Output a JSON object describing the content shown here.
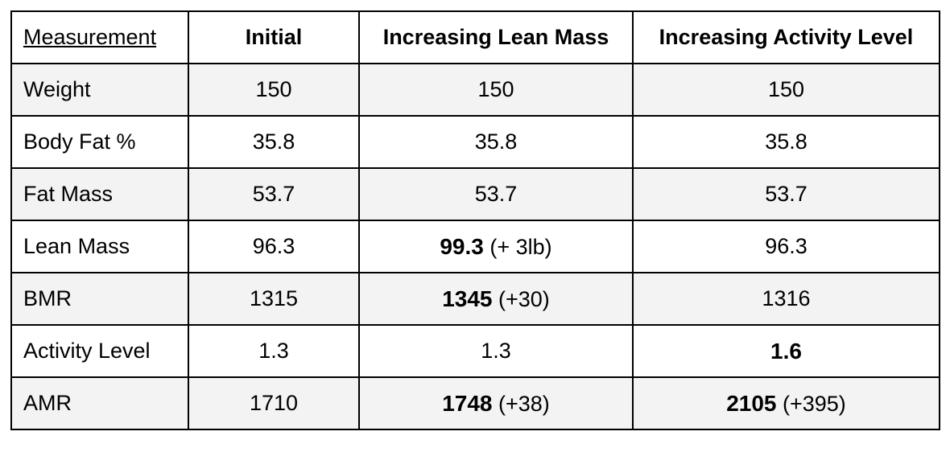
{
  "table": {
    "headers": [
      "Measurement",
      "Initial",
      "Increasing Lean Mass",
      "Increasing Activity Level"
    ],
    "rows": [
      {
        "label": "Weight",
        "initial": "150",
        "lean": {
          "value": "150",
          "delta": ""
        },
        "activity": {
          "value": "150",
          "delta": ""
        }
      },
      {
        "label": "Body Fat %",
        "initial": "35.8",
        "lean": {
          "value": "35.8",
          "delta": ""
        },
        "activity": {
          "value": "35.8",
          "delta": ""
        }
      },
      {
        "label": "Fat Mass",
        "initial": "53.7",
        "lean": {
          "value": "53.7",
          "delta": ""
        },
        "activity": {
          "value": "53.7",
          "delta": ""
        }
      },
      {
        "label": "Lean Mass",
        "initial": "96.3",
        "lean": {
          "value": "99.3",
          "delta": "(+ 3lb)",
          "bold": true
        },
        "activity": {
          "value": "96.3",
          "delta": ""
        }
      },
      {
        "label": "BMR",
        "initial": "1315",
        "lean": {
          "value": "1345",
          "delta": "(+30)",
          "bold": true
        },
        "activity": {
          "value": "1316",
          "delta": ""
        }
      },
      {
        "label": "Activity Level",
        "initial": "1.3",
        "lean": {
          "value": "1.3",
          "delta": ""
        },
        "activity": {
          "value": "1.6",
          "delta": "",
          "bold": true
        }
      },
      {
        "label": "AMR",
        "initial": "1710",
        "lean": {
          "value": "1748",
          "delta": "(+38)",
          "bold": true
        },
        "activity": {
          "value": "2105",
          "delta": "(+395)",
          "bold": true
        }
      }
    ]
  }
}
